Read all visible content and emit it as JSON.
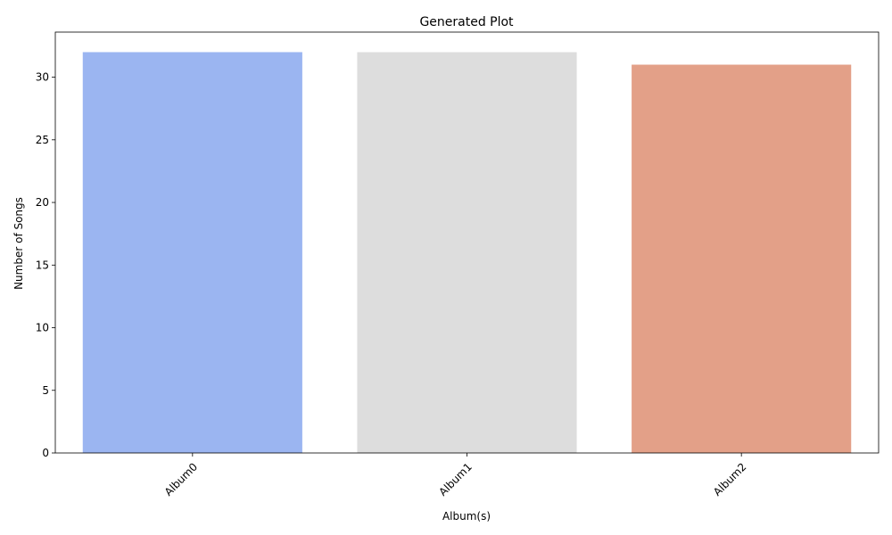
{
  "chart_data": {
    "type": "bar",
    "title": "Generated Plot",
    "xlabel": "Album(s)",
    "ylabel": "Number of Songs",
    "categories": [
      "Album0",
      "Album1",
      "Album2"
    ],
    "values": [
      32,
      32,
      31
    ],
    "colors": [
      "#9bb5f1",
      "#dddddd",
      "#e3a088"
    ],
    "ylim": [
      0,
      33.6
    ],
    "yticks": [
      0,
      5,
      10,
      15,
      20,
      25,
      30
    ],
    "xtick_rotation": 45,
    "grid": false,
    "legend": false
  }
}
